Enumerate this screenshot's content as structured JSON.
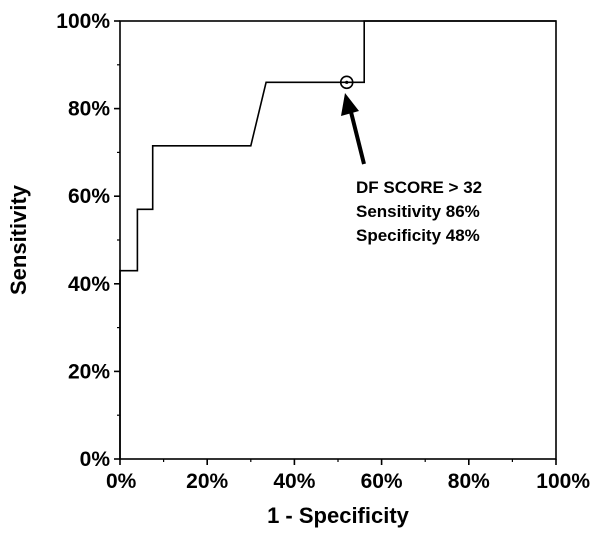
{
  "chart_data": {
    "type": "line",
    "title": "",
    "xlabel": "1 - Specificity",
    "ylabel": "Sensitivity",
    "xlim": [
      0,
      100
    ],
    "ylim": [
      0,
      100
    ],
    "x_ticks": [
      "0%",
      "20%",
      "40%",
      "60%",
      "80%",
      "100%"
    ],
    "y_ticks": [
      "0%",
      "20%",
      "40%",
      "60%",
      "80%",
      "100%"
    ],
    "grid": false,
    "series": [
      {
        "x": [
          0,
          0,
          4,
          4,
          7.5,
          7.5,
          30,
          33.5,
          52,
          56,
          56,
          100
        ],
        "y": [
          0,
          43,
          43,
          57,
          57,
          71.5,
          71.5,
          86,
          86,
          86,
          100,
          100
        ]
      }
    ],
    "highlight_point": {
      "x": 52,
      "y": 86
    },
    "annotation": {
      "lines": [
        "DF SCORE > 32",
        "Sensitivity 86%",
        "Specificity 48%"
      ]
    },
    "colors": {
      "line": "#000000",
      "axis": "#000000",
      "background": "#ffffff"
    }
  }
}
